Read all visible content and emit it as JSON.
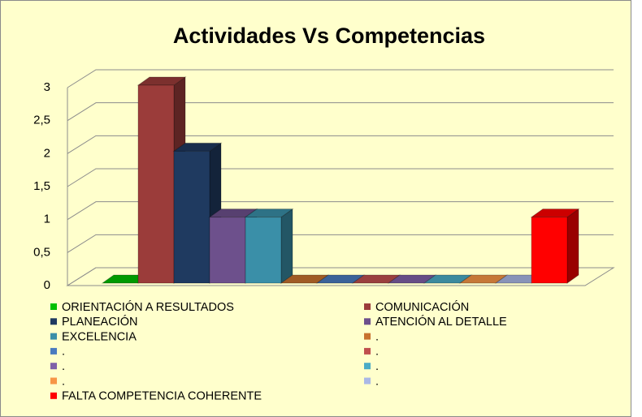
{
  "chart_data": {
    "type": "bar3d",
    "title": "Actividades Vs Competencias",
    "categories": [
      null
    ],
    "series": [
      {
        "name": "ORIENTACIÓN A RESULTADOS",
        "color": "#00c000",
        "values": [
          0
        ]
      },
      {
        "name": "COMUNICACIÓN",
        "color": "#9b3c3a",
        "values": [
          3
        ]
      },
      {
        "name": "PLANEACIÓN",
        "color": "#1f3a60",
        "values": [
          2
        ]
      },
      {
        "name": "ATENCIÓN AL DETALLE",
        "color": "#6d508c",
        "values": [
          1
        ]
      },
      {
        "name": "EXCELENCIA",
        "color": "#3a8fa8",
        "values": [
          1
        ]
      },
      {
        "name": ".",
        "color": "#c8722e",
        "values": [
          0
        ]
      },
      {
        "name": ".",
        "color": "#4a7bbf",
        "values": [
          0
        ]
      },
      {
        "name": ".",
        "color": "#c0504d",
        "values": [
          0
        ]
      },
      {
        "name": ".",
        "color": "#7f60a8",
        "values": [
          0
        ]
      },
      {
        "name": ".",
        "color": "#4bacc6",
        "values": [
          0
        ]
      },
      {
        "name": ".",
        "color": "#f79646",
        "values": [
          0
        ]
      },
      {
        "name": ".",
        "color": "#aab8e6",
        "values": [
          0
        ]
      },
      {
        "name": "FALTA COMPETENCIA COHERENTE",
        "color": "#ff0000",
        "values": [
          1
        ]
      }
    ],
    "ylim": [
      0,
      3
    ],
    "yticks": [
      0,
      {
        "value": 0.5,
        "label": "0,5"
      },
      1,
      {
        "value": 1.5,
        "label": "1,5"
      },
      2,
      {
        "value": 2.5,
        "label": "2,5"
      },
      3
    ],
    "grid": true
  }
}
